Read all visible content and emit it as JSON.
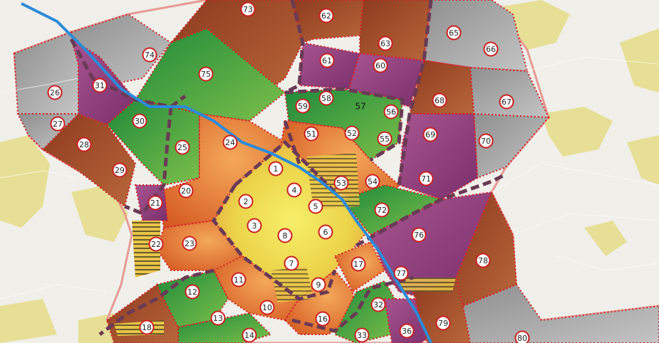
{
  "map": {
    "colors": {
      "background": "#f1efe9",
      "woodland": "#e8e29a",
      "river": "#2c8bd8",
      "zone_border": "#d61f26",
      "district_border": "#6a3a55",
      "outer_boundary": "#e79a93",
      "dark_brown": "#8a3b23",
      "orange": "#e0762a",
      "yellow": "#f1df3a",
      "green": "#3c9a3c",
      "purple": "#9a4a88",
      "grey": "#a8a8a8"
    },
    "zones": [
      {
        "id": "1",
        "category": "yellow"
      },
      {
        "id": "2",
        "category": "yellow"
      },
      {
        "id": "3",
        "category": "yellow"
      },
      {
        "id": "4",
        "category": "yellow"
      },
      {
        "id": "5",
        "category": "yellow"
      },
      {
        "id": "6",
        "category": "yellow"
      },
      {
        "id": "7",
        "category": "yellow"
      },
      {
        "id": "8",
        "category": "yellow"
      },
      {
        "id": "9",
        "category": "yellow"
      },
      {
        "id": "10",
        "category": "orange"
      },
      {
        "id": "11",
        "category": "orange"
      },
      {
        "id": "12",
        "category": "green"
      },
      {
        "id": "13",
        "category": "green"
      },
      {
        "id": "14",
        "category": "green"
      },
      {
        "id": "16",
        "category": "orange"
      },
      {
        "id": "17",
        "category": "orange"
      },
      {
        "id": "18",
        "category": "dark_brown"
      },
      {
        "id": "20",
        "category": "orange"
      },
      {
        "id": "21",
        "category": "purple"
      },
      {
        "id": "22",
        "category": "yellow"
      },
      {
        "id": "23",
        "category": "orange"
      },
      {
        "id": "24",
        "category": "orange"
      },
      {
        "id": "25",
        "category": "green"
      },
      {
        "id": "26",
        "category": "grey"
      },
      {
        "id": "27",
        "category": "grey"
      },
      {
        "id": "28",
        "category": "dark_brown"
      },
      {
        "id": "29",
        "category": "dark_brown"
      },
      {
        "id": "30",
        "category": "green"
      },
      {
        "id": "31",
        "category": "purple"
      },
      {
        "id": "32",
        "category": "green"
      },
      {
        "id": "33",
        "category": "green"
      },
      {
        "id": "36",
        "category": "purple"
      },
      {
        "id": "51",
        "category": "orange"
      },
      {
        "id": "52",
        "category": "orange"
      },
      {
        "id": "53",
        "category": "yellow"
      },
      {
        "id": "54",
        "category": "orange"
      },
      {
        "id": "55",
        "category": "green"
      },
      {
        "id": "56",
        "category": "green"
      },
      {
        "id": "57",
        "category": "green"
      },
      {
        "id": "58",
        "category": "green"
      },
      {
        "id": "59",
        "category": "green"
      },
      {
        "id": "60",
        "category": "purple"
      },
      {
        "id": "61",
        "category": "purple"
      },
      {
        "id": "62",
        "category": "dark_brown"
      },
      {
        "id": "63",
        "category": "dark_brown"
      },
      {
        "id": "65",
        "category": "grey"
      },
      {
        "id": "66",
        "category": "grey"
      },
      {
        "id": "67",
        "category": "grey"
      },
      {
        "id": "68",
        "category": "dark_brown"
      },
      {
        "id": "69",
        "category": "purple"
      },
      {
        "id": "70",
        "category": "grey"
      },
      {
        "id": "71",
        "category": "purple"
      },
      {
        "id": "72",
        "category": "green"
      },
      {
        "id": "73",
        "category": "dark_brown"
      },
      {
        "id": "74",
        "category": "grey"
      },
      {
        "id": "75",
        "category": "green"
      },
      {
        "id": "76",
        "category": "purple"
      },
      {
        "id": "77",
        "category": "purple"
      },
      {
        "id": "78",
        "category": "dark_brown"
      },
      {
        "id": "79",
        "category": "dark_brown"
      },
      {
        "id": "80",
        "category": "grey"
      }
    ]
  }
}
